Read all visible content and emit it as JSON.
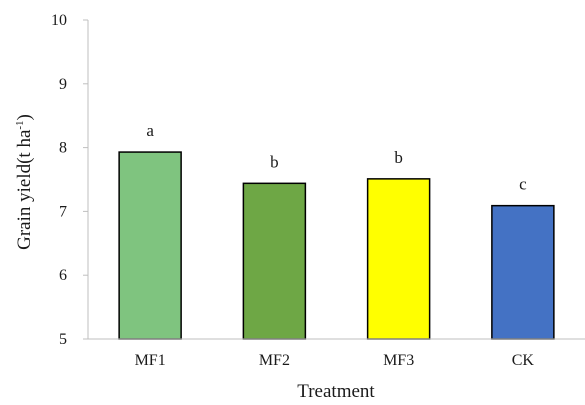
{
  "chart_data": {
    "type": "bar",
    "xlabel": "Treatment",
    "ylabel_main": "Grain yield(t ha",
    "ylabel_sup": "-1",
    "ylabel_close": ")",
    "categories": [
      "MF1",
      "MF2",
      "MF3",
      "CK"
    ],
    "values": [
      7.93,
      7.44,
      7.51,
      7.09
    ],
    "significance_labels": [
      "a",
      "b",
      "b",
      "c"
    ],
    "bar_colors": [
      "#7fc47f",
      "#6ea745",
      "#ffff00",
      "#4472c4"
    ],
    "ylim": [
      5,
      10
    ],
    "yticks": [
      "5",
      "6",
      "7",
      "8",
      "9",
      "10"
    ],
    "grid": false,
    "legend": "none"
  }
}
